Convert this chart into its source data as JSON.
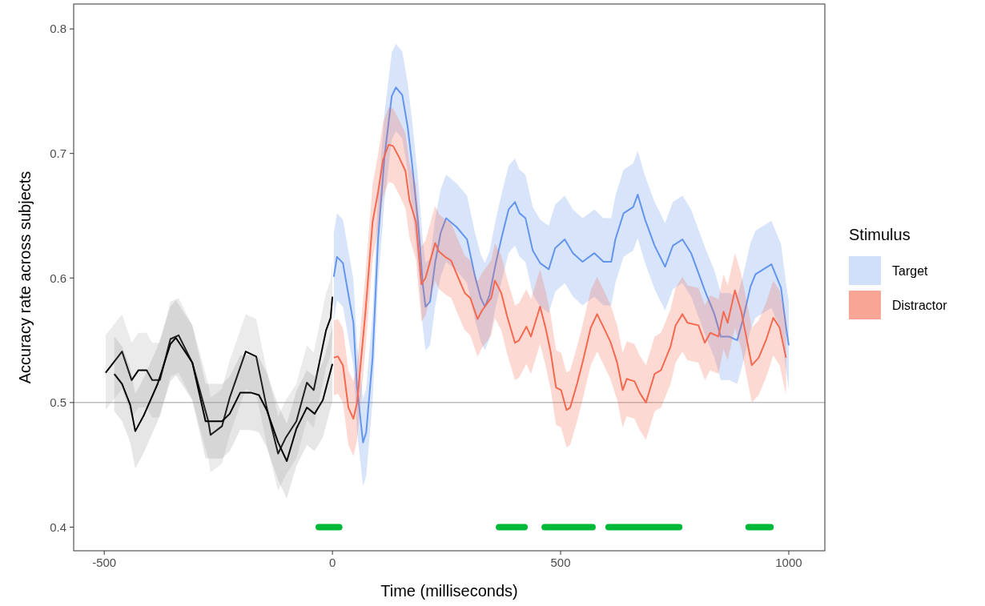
{
  "chart_data": {
    "type": "line",
    "xlabel": "Time (milliseconds)",
    "ylabel": "Accuracy rate across subjects",
    "legend_title": "Stimulus",
    "legend": "right",
    "grid": false,
    "xlim": [
      -567,
      1079
    ],
    "ylim": [
      0.381,
      0.82
    ],
    "xticks": [
      -500,
      0,
      500,
      1000
    ],
    "yticks": [
      0.4,
      0.5,
      0.6,
      0.7,
      0.8
    ],
    "ref_lines": [
      {
        "axis": "y",
        "value": 0.5,
        "color": "#bdbdbd"
      }
    ],
    "series": [
      {
        "color": "#000000",
        "x": [
          -497,
          -461,
          -440,
          -425,
          -407,
          -395,
          -378,
          -355,
          -337,
          -307,
          -272,
          -267,
          -242,
          -225,
          -190,
          -167,
          -144,
          -119,
          -102,
          -79,
          -56,
          -41,
          -14,
          -4,
          0
        ],
        "values": [
          0.524,
          0.541,
          0.518,
          0.526,
          0.526,
          0.518,
          0.518,
          0.551,
          0.554,
          0.532,
          0.485,
          0.474,
          0.481,
          0.504,
          0.541,
          0.537,
          0.496,
          0.459,
          0.472,
          0.485,
          0.516,
          0.51,
          0.558,
          0.568,
          0.585
        ],
        "lower": [
          0.494,
          0.511,
          0.488,
          0.496,
          0.496,
          0.488,
          0.488,
          0.521,
          0.524,
          0.502,
          0.455,
          0.444,
          0.451,
          0.474,
          0.511,
          0.507,
          0.466,
          0.429,
          0.442,
          0.455,
          0.486,
          0.48,
          0.528,
          0.538,
          0.555
        ],
        "upper": [
          0.554,
          0.571,
          0.548,
          0.556,
          0.556,
          0.548,
          0.548,
          0.581,
          0.584,
          0.562,
          0.515,
          0.504,
          0.511,
          0.534,
          0.571,
          0.567,
          0.526,
          0.489,
          0.502,
          0.515,
          0.546,
          0.54,
          0.588,
          0.598,
          0.615
        ]
      },
      {
        "color": "#000000",
        "x": [
          -478,
          -461,
          -443,
          -432,
          -413,
          -383,
          -355,
          -343,
          -307,
          -278,
          -242,
          -225,
          -202,
          -179,
          -161,
          -144,
          -119,
          -100,
          -79,
          -56,
          -39,
          -21,
          0
        ],
        "values": [
          0.523,
          0.515,
          0.498,
          0.477,
          0.49,
          0.515,
          0.547,
          0.552,
          0.532,
          0.485,
          0.485,
          0.491,
          0.508,
          0.508,
          0.506,
          0.494,
          0.468,
          0.453,
          0.479,
          0.496,
          0.491,
          0.502,
          0.531
        ],
        "lower": [
          0.493,
          0.485,
          0.468,
          0.447,
          0.46,
          0.485,
          0.517,
          0.522,
          0.502,
          0.455,
          0.455,
          0.461,
          0.478,
          0.478,
          0.476,
          0.464,
          0.438,
          0.423,
          0.449,
          0.466,
          0.461,
          0.472,
          0.501
        ],
        "upper": [
          0.553,
          0.545,
          0.528,
          0.507,
          0.52,
          0.545,
          0.577,
          0.582,
          0.562,
          0.515,
          0.515,
          0.521,
          0.538,
          0.538,
          0.536,
          0.524,
          0.498,
          0.483,
          0.509,
          0.526,
          0.521,
          0.532,
          0.561
        ]
      },
      {
        "name": "Target",
        "color": "#6495ed",
        "x": [
          3,
          10,
          23,
          32,
          46,
          54,
          67,
          74,
          88,
          100,
          114,
          130,
          139,
          153,
          165,
          175,
          188,
          198,
          204,
          214,
          225,
          237,
          249,
          272,
          295,
          312,
          325,
          334,
          344,
          358,
          371,
          386,
          400,
          410,
          423,
          439,
          455,
          474,
          488,
          509,
          527,
          548,
          574,
          594,
          611,
          620,
          638,
          659,
          669,
          685,
          706,
          729,
          746,
          767,
          786,
          816,
          837,
          851,
          869,
          887,
          899,
          916,
          927,
          962,
          983,
          995,
          1000
        ],
        "values": [
          0.601,
          0.617,
          0.612,
          0.593,
          0.564,
          0.512,
          0.468,
          0.476,
          0.536,
          0.631,
          0.697,
          0.746,
          0.753,
          0.747,
          0.721,
          0.69,
          0.643,
          0.595,
          0.577,
          0.581,
          0.612,
          0.636,
          0.648,
          0.641,
          0.631,
          0.602,
          0.584,
          0.577,
          0.586,
          0.612,
          0.633,
          0.655,
          0.661,
          0.652,
          0.648,
          0.622,
          0.612,
          0.607,
          0.624,
          0.631,
          0.62,
          0.613,
          0.62,
          0.613,
          0.613,
          0.631,
          0.652,
          0.657,
          0.667,
          0.647,
          0.626,
          0.609,
          0.626,
          0.631,
          0.62,
          0.59,
          0.571,
          0.553,
          0.553,
          0.55,
          0.566,
          0.593,
          0.603,
          0.611,
          0.592,
          0.558,
          0.546
        ],
        "lower": [
          0.566,
          0.582,
          0.577,
          0.558,
          0.529,
          0.477,
          0.433,
          0.441,
          0.501,
          0.596,
          0.662,
          0.711,
          0.718,
          0.712,
          0.686,
          0.655,
          0.608,
          0.56,
          0.542,
          0.546,
          0.577,
          0.601,
          0.613,
          0.606,
          0.596,
          0.567,
          0.549,
          0.542,
          0.551,
          0.577,
          0.598,
          0.62,
          0.626,
          0.617,
          0.613,
          0.587,
          0.577,
          0.572,
          0.589,
          0.596,
          0.585,
          0.578,
          0.585,
          0.578,
          0.578,
          0.596,
          0.617,
          0.622,
          0.632,
          0.612,
          0.591,
          0.574,
          0.591,
          0.596,
          0.585,
          0.555,
          0.536,
          0.518,
          0.518,
          0.515,
          0.531,
          0.558,
          0.568,
          0.576,
          0.557,
          0.523,
          0.511
        ],
        "upper": [
          0.636,
          0.652,
          0.647,
          0.628,
          0.599,
          0.547,
          0.503,
          0.511,
          0.571,
          0.666,
          0.732,
          0.781,
          0.788,
          0.782,
          0.756,
          0.725,
          0.678,
          0.63,
          0.612,
          0.616,
          0.647,
          0.671,
          0.683,
          0.676,
          0.666,
          0.637,
          0.619,
          0.612,
          0.621,
          0.647,
          0.668,
          0.69,
          0.696,
          0.687,
          0.683,
          0.657,
          0.647,
          0.642,
          0.659,
          0.666,
          0.655,
          0.648,
          0.655,
          0.648,
          0.648,
          0.666,
          0.687,
          0.692,
          0.702,
          0.682,
          0.661,
          0.644,
          0.661,
          0.666,
          0.655,
          0.625,
          0.606,
          0.588,
          0.588,
          0.585,
          0.601,
          0.628,
          0.638,
          0.646,
          0.627,
          0.593,
          0.581
        ]
      },
      {
        "name": "Distractor",
        "color": "#f4694f",
        "x": [
          3,
          12,
          23,
          35,
          46,
          54,
          72,
          88,
          100,
          111,
          123,
          133,
          146,
          160,
          169,
          183,
          195,
          204,
          225,
          234,
          247,
          260,
          276,
          290,
          302,
          318,
          328,
          348,
          356,
          370,
          383,
          400,
          409,
          425,
          435,
          455,
          467,
          478,
          490,
          501,
          513,
          521,
          536,
          548,
          566,
          580,
          592,
          609,
          624,
          636,
          645,
          662,
          673,
          687,
          706,
          720,
          741,
          752,
          767,
          778,
          802,
          816,
          828,
          846,
          857,
          866,
          882,
          896,
          919,
          934,
          951,
          966,
          980,
          994
        ],
        "values": [
          0.536,
          0.537,
          0.53,
          0.496,
          0.487,
          0.5,
          0.571,
          0.645,
          0.669,
          0.695,
          0.707,
          0.706,
          0.697,
          0.686,
          0.662,
          0.645,
          0.595,
          0.6,
          0.628,
          0.621,
          0.617,
          0.614,
          0.6,
          0.588,
          0.584,
          0.567,
          0.574,
          0.584,
          0.598,
          0.588,
          0.569,
          0.548,
          0.55,
          0.561,
          0.553,
          0.577,
          0.56,
          0.541,
          0.512,
          0.51,
          0.494,
          0.496,
          0.515,
          0.532,
          0.56,
          0.571,
          0.562,
          0.549,
          0.532,
          0.51,
          0.519,
          0.517,
          0.508,
          0.5,
          0.523,
          0.526,
          0.545,
          0.562,
          0.571,
          0.564,
          0.562,
          0.548,
          0.556,
          0.553,
          0.573,
          0.564,
          0.59,
          0.573,
          0.53,
          0.536,
          0.551,
          0.568,
          0.56,
          0.536
        ],
        "lower": [
          0.506,
          0.507,
          0.5,
          0.466,
          0.457,
          0.47,
          0.541,
          0.615,
          0.639,
          0.665,
          0.677,
          0.676,
          0.667,
          0.656,
          0.632,
          0.615,
          0.565,
          0.57,
          0.598,
          0.591,
          0.587,
          0.584,
          0.57,
          0.558,
          0.554,
          0.537,
          0.544,
          0.554,
          0.568,
          0.558,
          0.539,
          0.518,
          0.52,
          0.531,
          0.523,
          0.547,
          0.53,
          0.511,
          0.482,
          0.48,
          0.464,
          0.466,
          0.485,
          0.502,
          0.53,
          0.541,
          0.532,
          0.519,
          0.502,
          0.48,
          0.489,
          0.487,
          0.478,
          0.47,
          0.493,
          0.496,
          0.515,
          0.532,
          0.541,
          0.534,
          0.532,
          0.518,
          0.526,
          0.523,
          0.543,
          0.534,
          0.56,
          0.543,
          0.5,
          0.506,
          0.521,
          0.538,
          0.53,
          0.506
        ],
        "upper": [
          0.566,
          0.567,
          0.56,
          0.526,
          0.517,
          0.53,
          0.601,
          0.675,
          0.699,
          0.725,
          0.737,
          0.736,
          0.727,
          0.716,
          0.692,
          0.675,
          0.625,
          0.63,
          0.658,
          0.651,
          0.647,
          0.644,
          0.63,
          0.618,
          0.614,
          0.597,
          0.604,
          0.614,
          0.628,
          0.618,
          0.599,
          0.578,
          0.58,
          0.591,
          0.583,
          0.607,
          0.59,
          0.571,
          0.542,
          0.54,
          0.524,
          0.526,
          0.545,
          0.562,
          0.59,
          0.601,
          0.592,
          0.579,
          0.562,
          0.54,
          0.549,
          0.547,
          0.538,
          0.53,
          0.553,
          0.556,
          0.575,
          0.592,
          0.601,
          0.594,
          0.592,
          0.578,
          0.586,
          0.583,
          0.603,
          0.594,
          0.62,
          0.603,
          0.56,
          0.566,
          0.581,
          0.598,
          0.59,
          0.566
        ]
      },
      {
        "color": "#00b938",
        "x": [
          -30,
          15,
          190,
          365,
          421,
          443,
          465,
          570,
          588,
          605,
          760,
          836,
          912,
          960
        ],
        "values": [
          0.4,
          0.4,
          null,
          0.4,
          0.4,
          null,
          0.4,
          0.4,
          null,
          0.4,
          0.4,
          null,
          0.4,
          0.4
        ]
      }
    ]
  }
}
